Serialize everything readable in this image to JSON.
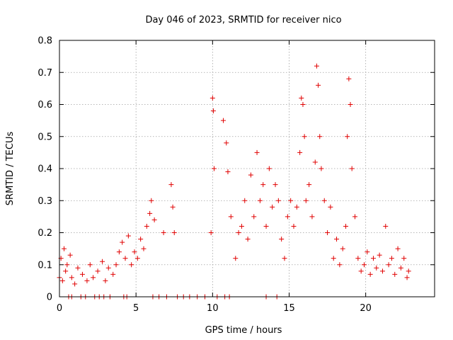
{
  "chart_data": {
    "type": "scatter",
    "title": "Day 046 of 2023, SRMTID for receiver nico",
    "xlabel": "GPS time / hours",
    "ylabel": "SRMTID / TECUs",
    "xlim": [
      0,
      24.5
    ],
    "ylim": [
      0,
      0.8
    ],
    "x_ticks": [
      "0",
      "5",
      "10",
      "15",
      "20"
    ],
    "y_ticks": [
      "0",
      "0.1",
      "0.2",
      "0.3",
      "0.4",
      "0.5",
      "0.6",
      "0.7",
      "0.8"
    ],
    "x_tick_values": [
      0,
      5,
      10,
      15,
      20
    ],
    "y_tick_values": [
      0,
      0.1,
      0.2,
      0.3,
      0.4,
      0.5,
      0.6,
      0.7,
      0.8
    ],
    "grid": true,
    "marker": "+",
    "series_color": "#e00000",
    "series": [
      {
        "name": "SRMTID",
        "x": [
          0.0,
          0.1,
          0.2,
          0.3,
          0.4,
          0.5,
          0.7,
          0.8,
          1.0,
          1.2,
          1.5,
          1.8,
          2.0,
          2.2,
          2.5,
          2.8,
          3.0,
          3.2,
          3.5,
          3.7,
          3.9,
          4.1,
          4.3,
          4.5,
          4.7,
          4.9,
          5.1,
          5.3,
          5.5,
          5.7,
          5.9,
          6.0,
          6.2,
          6.8,
          7.3,
          7.4,
          7.5,
          9.9,
          10.0,
          10.05,
          10.1,
          10.7,
          10.9,
          11.0,
          11.2,
          11.5,
          11.7,
          11.9,
          12.1,
          12.3,
          12.5,
          12.7,
          12.9,
          13.1,
          13.3,
          13.5,
          13.7,
          13.9,
          14.1,
          14.3,
          14.5,
          14.7,
          14.9,
          15.1,
          15.3,
          15.5,
          15.7,
          15.8,
          15.9,
          16.0,
          16.1,
          16.3,
          16.5,
          16.7,
          16.8,
          16.9,
          17.0,
          17.1,
          17.3,
          17.5,
          17.7,
          17.9,
          18.1,
          18.3,
          18.5,
          18.7,
          18.8,
          18.9,
          19.0,
          19.1,
          19.3,
          19.5,
          19.7,
          19.9,
          20.1,
          20.3,
          20.5,
          20.7,
          20.9,
          21.1,
          21.3,
          21.5,
          21.7,
          21.9,
          22.1,
          22.3,
          22.5,
          22.7,
          22.8,
          0.6,
          0.8,
          1.4,
          1.7,
          2.3,
          2.6,
          2.9,
          3.3,
          4.2,
          4.4,
          6.1,
          6.5,
          7.0,
          7.7,
          8.1,
          8.5,
          9.0,
          9.5,
          10.3,
          10.8,
          11.1,
          13.5,
          14.2
        ],
        "y": [
          0.06,
          0.12,
          0.05,
          0.15,
          0.08,
          0.1,
          0.13,
          0.06,
          0.04,
          0.09,
          0.07,
          0.05,
          0.1,
          0.06,
          0.08,
          0.11,
          0.05,
          0.09,
          0.07,
          0.1,
          0.14,
          0.17,
          0.12,
          0.19,
          0.1,
          0.14,
          0.12,
          0.18,
          0.15,
          0.22,
          0.26,
          0.3,
          0.24,
          0.2,
          0.35,
          0.28,
          0.2,
          0.2,
          0.62,
          0.58,
          0.4,
          0.55,
          0.48,
          0.39,
          0.25,
          0.12,
          0.2,
          0.22,
          0.3,
          0.18,
          0.38,
          0.25,
          0.45,
          0.3,
          0.35,
          0.22,
          0.4,
          0.28,
          0.35,
          0.3,
          0.18,
          0.12,
          0.25,
          0.3,
          0.22,
          0.28,
          0.45,
          0.62,
          0.6,
          0.5,
          0.3,
          0.35,
          0.25,
          0.42,
          0.72,
          0.66,
          0.5,
          0.4,
          0.3,
          0.2,
          0.28,
          0.12,
          0.18,
          0.1,
          0.15,
          0.22,
          0.5,
          0.68,
          0.6,
          0.4,
          0.25,
          0.12,
          0.08,
          0.1,
          0.14,
          0.07,
          0.12,
          0.09,
          0.13,
          0.08,
          0.22,
          0.1,
          0.12,
          0.07,
          0.15,
          0.09,
          0.12,
          0.06,
          0.08,
          0.0,
          0.0,
          0.0,
          0.0,
          0.0,
          0.0,
          0.0,
          0.0,
          0.0,
          0.0,
          0.0,
          0.0,
          0.0,
          0.0,
          0.0,
          0.0,
          0.0,
          0.0,
          0.0,
          0.0,
          0.0,
          0.0,
          0.0
        ]
      }
    ]
  }
}
